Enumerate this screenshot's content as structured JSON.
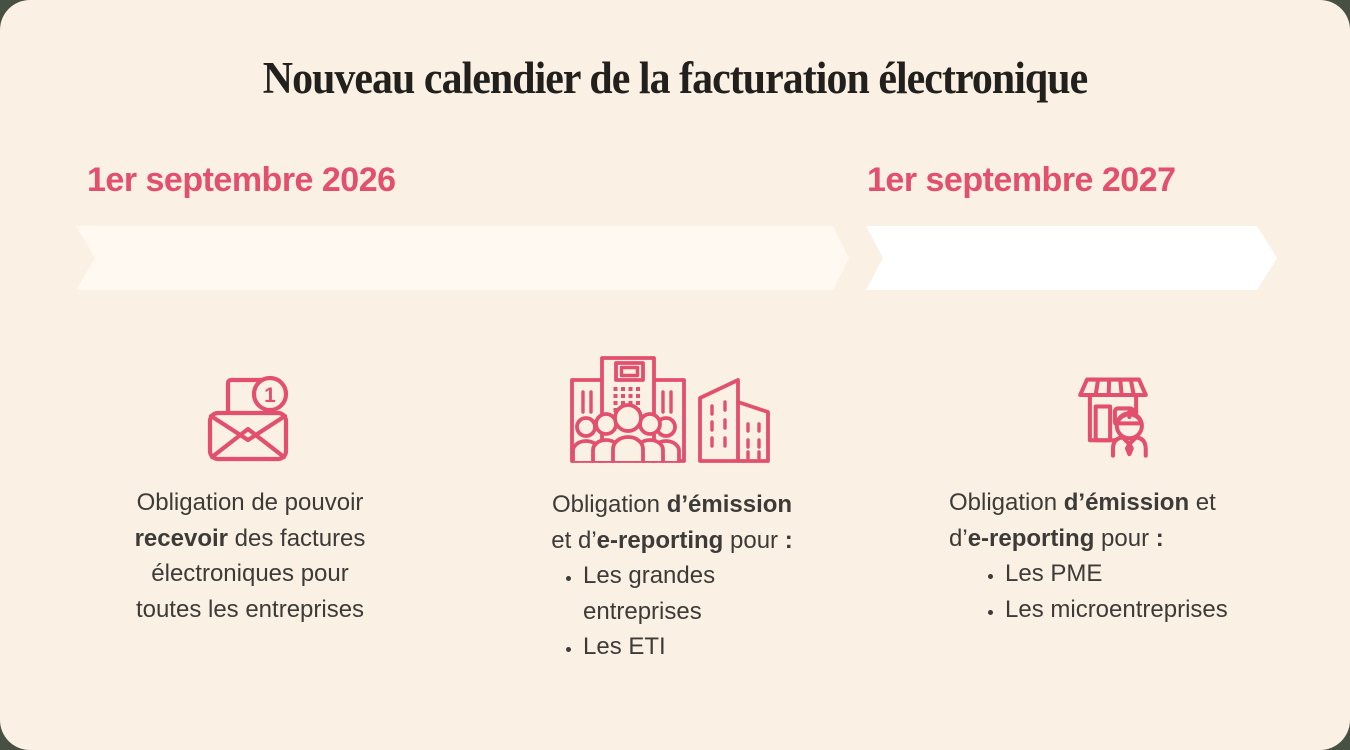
{
  "title": "Nouveau calendier de la facturation électronique",
  "colors": {
    "card_background": "#faf1e4",
    "page_background": "#475143",
    "accent_pink": "#e2506e",
    "title_text": "#22201c",
    "body_text": "#3d3b38"
  },
  "timeline": {
    "milestones": [
      {
        "date": "1er septembre 2026",
        "arrow_color": "#fff9f2"
      },
      {
        "date": "1er septembre 2027",
        "arrow_color": "#ffffff"
      }
    ]
  },
  "columns": [
    {
      "icon": "envelope-notification-icon",
      "badge": "1",
      "lines": [
        [
          {
            "t": "Obligation de pouvoir"
          }
        ],
        [
          {
            "t": "recevoir",
            "b": true
          },
          {
            "t": " des factures"
          }
        ],
        [
          {
            "t": "électroniques pour"
          }
        ],
        [
          {
            "t": "toutes les entreprises"
          }
        ]
      ],
      "bullets": []
    },
    {
      "icon": "buildings-crowd-icon",
      "lines": [
        [
          {
            "t": "Obligation "
          },
          {
            "t": "d’émission",
            "b": true
          }
        ],
        [
          {
            "t": "et d’"
          },
          {
            "t": "e-reporting",
            "b": true
          },
          {
            "t": " pour "
          },
          {
            "t": ":",
            "b": true
          }
        ]
      ],
      "bullets": [
        "Les grandes\nentreprises",
        "Les ETI"
      ]
    },
    {
      "icon": "shop-person-icon",
      "lines": [
        [
          {
            "t": "Obligation "
          },
          {
            "t": "d’émission",
            "b": true
          },
          {
            "t": " et"
          }
        ],
        [
          {
            "t": "d’"
          },
          {
            "t": "e-reporting",
            "b": true
          },
          {
            "t": " pour "
          },
          {
            "t": ":",
            "b": true
          }
        ]
      ],
      "bullets": [
        "Les PME",
        "Les microentreprises"
      ]
    }
  ]
}
